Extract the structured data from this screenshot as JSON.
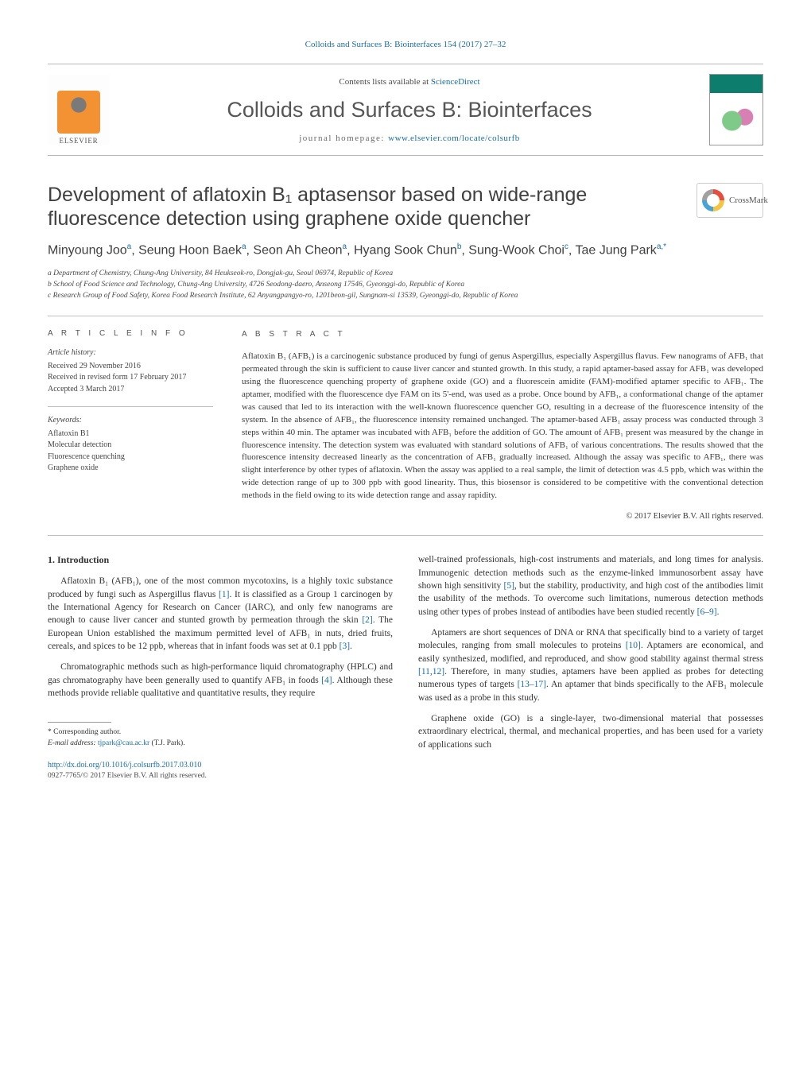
{
  "top_link": {
    "journal": "Colloids and Surfaces B: Biointerfaces",
    "citation": "154 (2017) 27–32"
  },
  "masthead": {
    "contents_prefix": "Contents lists available at ",
    "contents_link": "ScienceDirect",
    "journal_name": "Colloids and Surfaces B: Biointerfaces",
    "homepage_label": "journal homepage: ",
    "homepage_url": "www.elsevier.com/locate/colsurfb",
    "publisher_word": "ELSEVIER"
  },
  "crossmark_label": "CrossMark",
  "title": "Development of aflatoxin B₁ aptasensor based on wide-range fluorescence detection using graphene oxide quencher",
  "authors_html": "Minyoung Joo<sup>a</sup>, Seung Hoon Baek<sup>a</sup>, Seon Ah Cheon<sup>a</sup>, Hyang Sook Chun<sup>b</sup>, Sung-Wook Choi<sup>c</sup>, Tae Jung Park<sup>a,*</sup>",
  "affiliations": [
    "a Department of Chemistry, Chung-Ang University, 84 Heukseok-ro, Dongjak-gu, Seoul 06974, Republic of Korea",
    "b School of Food Science and Technology, Chung-Ang University, 4726 Seodong-daero, Anseong 17546, Gyeonggi-do, Republic of Korea",
    "c Research Group of Food Safety, Korea Food Research Institute, 62 Anyangpangyo-ro, 1201beon-gil, Sungnam-si 13539, Gyeonggi-do, Republic of Korea"
  ],
  "article_info": {
    "heading": "A R T I C L E   I N F O",
    "history_label": "Article history:",
    "history": [
      "Received 29 November 2016",
      "Received in revised form 17 February 2017",
      "Accepted 3 March 2017"
    ],
    "keywords_label": "Keywords:",
    "keywords": [
      "Aflatoxin B1",
      "Molecular detection",
      "Fluorescence quenching",
      "Graphene oxide"
    ]
  },
  "abstract": {
    "heading": "A B S T R A C T",
    "text": "Aflatoxin B₁ (AFB₁) is a carcinogenic substance produced by fungi of genus Aspergillus, especially Aspergillus flavus. Few nanograms of AFB₁ that permeated through the skin is sufficient to cause liver cancer and stunted growth. In this study, a rapid aptamer-based assay for AFB₁ was developed using the fluorescence quenching property of graphene oxide (GO) and a fluorescein amidite (FAM)-modified aptamer specific to AFB₁. The aptamer, modified with the fluorescence dye FAM on its 5'-end, was used as a probe. Once bound by AFB₁, a conformational change of the aptamer was caused that led to its interaction with the well-known fluorescence quencher GO, resulting in a decrease of the fluorescence intensity of the system. In the absence of AFB₁, the fluorescence intensity remained unchanged. The aptamer-based AFB₁ assay process was conducted through 3 steps within 40 min. The aptamer was incubated with AFB₁ before the addition of GO. The amount of AFB₁ present was measured by the change in fluorescence intensity. The detection system was evaluated with standard solutions of AFB₁ of various concentrations. The results showed that the fluorescence intensity decreased linearly as the concentration of AFB₁ gradually increased. Although the assay was specific to AFB₁, there was slight interference by other types of aflatoxin. When the assay was applied to a real sample, the limit of detection was 4.5 ppb, which was within the wide detection range of up to 300 ppb with good linearity. Thus, this biosensor is considered to be competitive with the conventional detection methods in the field owing to its wide detection range and assay rapidity.",
    "copyright": "© 2017 Elsevier B.V. All rights reserved."
  },
  "body": {
    "section_heading": "1.  Introduction",
    "left": [
      "Aflatoxin B₁ (AFB₁), one of the most common mycotoxins, is a highly toxic substance produced by fungi such as Aspergillus flavus [1]. It is classified as a Group 1 carcinogen by the International Agency for Research on Cancer (IARC), and only few nanograms are enough to cause liver cancer and stunted growth by permeation through the skin [2]. The European Union established the maximum permitted level of AFB₁ in nuts, dried fruits, cereals, and spices to be 12 ppb, whereas that in infant foods was set at 0.1 ppb [3].",
      "Chromatographic methods such as high-performance liquid chromatography (HPLC) and gas chromatography have been generally used to quantify AFB₁ in foods [4]. Although these methods provide reliable qualitative and quantitative results, they require"
    ],
    "right": [
      "well-trained professionals, high-cost instruments and materials, and long times for analysis. Immunogenic detection methods such as the enzyme-linked immunosorbent assay have shown high sensitivity [5], but the stability, productivity, and high cost of the antibodies limit the usability of the methods. To overcome such limitations, numerous detection methods using other types of probes instead of antibodies have been studied recently [6–9].",
      "Aptamers are short sequences of DNA or RNA that specifically bind to a variety of target molecules, ranging from small molecules to proteins [10]. Aptamers are economical, and easily synthesized, modified, and reproduced, and show good stability against thermal stress [11,12]. Therefore, in many studies, aptamers have been applied as probes for detecting numerous types of targets [13–17]. An aptamer that binds specifically to the AFB₁ molecule was used as a probe in this study.",
      "Graphene oxide (GO) is a single-layer, two-dimensional material that possesses extraordinary electrical, thermal, and mechanical properties, and has been used for a variety of applications such"
    ]
  },
  "footer": {
    "corr_label": "* Corresponding author.",
    "email_label": "E-mail address: ",
    "email": "tjpark@cau.ac.kr",
    "email_person": " (T.J. Park).",
    "doi": "http://dx.doi.org/10.1016/j.colsurfb.2017.03.010",
    "issn_line": "0927-7765/© 2017 Elsevier B.V. All rights reserved."
  },
  "colors": {
    "link": "#186ea8",
    "text": "#323232",
    "rule": "#bfbfbf",
    "elsevier_orange": "#f29233",
    "cover_green": "#0d7d6e"
  }
}
